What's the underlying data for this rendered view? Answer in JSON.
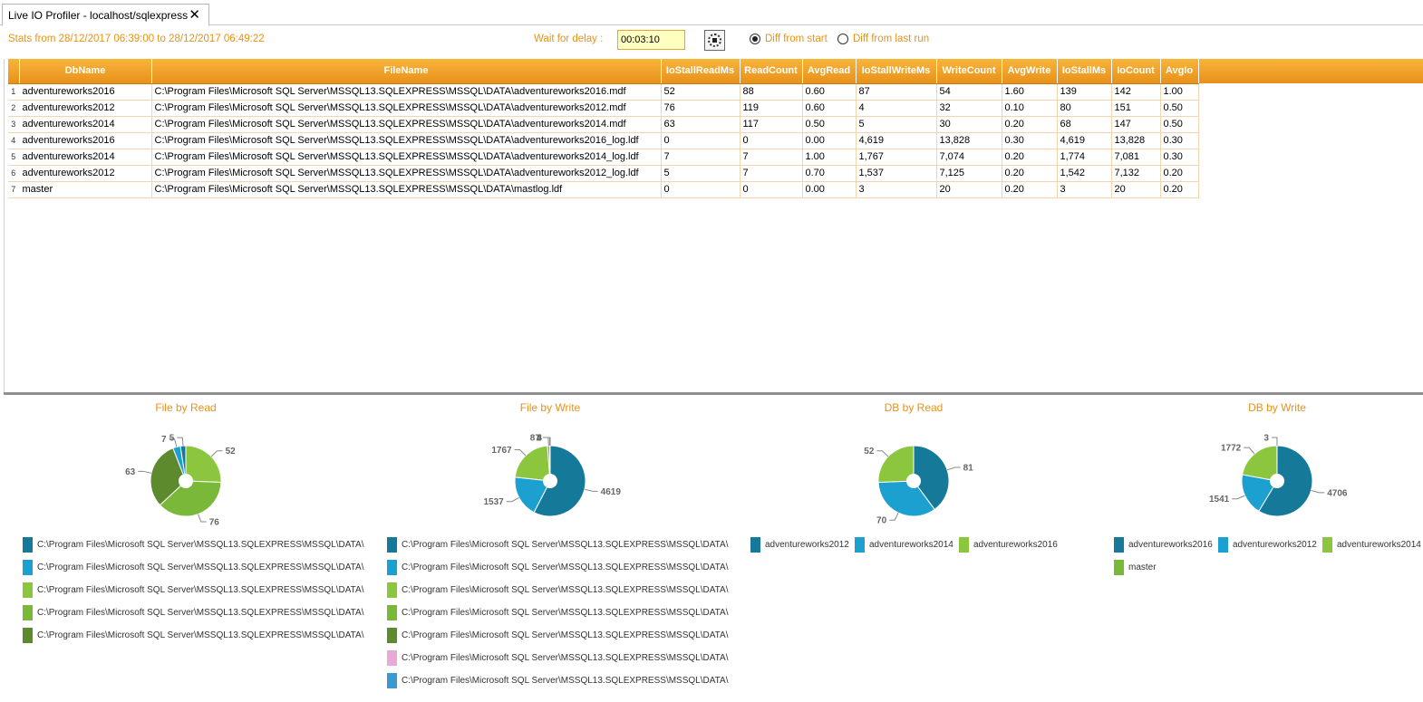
{
  "tab": {
    "title": "Live IO Profiler - localhost/sqlexpress",
    "close_symbol": "✕"
  },
  "toolbar": {
    "stats_text": "Stats from 28/12/2017 06:39:00 to 28/12/2017 06:49:22",
    "wait_label": "Wait for delay :",
    "delay_value": "00:03:10",
    "radio_start": "Diff from start",
    "radio_last": "Diff from last run",
    "selected": "start",
    "stop_icon": "stop-icon"
  },
  "grid": {
    "columns": [
      "DbName",
      "FileName",
      "IoStallReadMs",
      "ReadCount",
      "AvgRead",
      "IoStallWriteMs",
      "WriteCount",
      "AvgWrite",
      "IoStallMs",
      "IoCount",
      "AvgIo"
    ],
    "rows": [
      [
        "1",
        "adventureworks2016",
        "C:\\Program Files\\Microsoft SQL Server\\MSSQL13.SQLEXPRESS\\MSSQL\\DATA\\adventureworks2016.mdf",
        "52",
        "88",
        "0.60",
        "87",
        "54",
        "1.60",
        "139",
        "142",
        "1.00"
      ],
      [
        "2",
        "adventureworks2012",
        "C:\\Program Files\\Microsoft SQL Server\\MSSQL13.SQLEXPRESS\\MSSQL\\DATA\\adventureworks2012.mdf",
        "76",
        "119",
        "0.60",
        "4",
        "32",
        "0.10",
        "80",
        "151",
        "0.50"
      ],
      [
        "3",
        "adventureworks2014",
        "C:\\Program Files\\Microsoft SQL Server\\MSSQL13.SQLEXPRESS\\MSSQL\\DATA\\adventureworks2014.mdf",
        "63",
        "117",
        "0.50",
        "5",
        "30",
        "0.20",
        "68",
        "147",
        "0.50"
      ],
      [
        "4",
        "adventureworks2016",
        "C:\\Program Files\\Microsoft SQL Server\\MSSQL13.SQLEXPRESS\\MSSQL\\DATA\\adventureworks2016_log.ldf",
        "0",
        "0",
        "0.00",
        "4,619",
        "13,828",
        "0.30",
        "4,619",
        "13,828",
        "0.30"
      ],
      [
        "5",
        "adventureworks2014",
        "C:\\Program Files\\Microsoft SQL Server\\MSSQL13.SQLEXPRESS\\MSSQL\\DATA\\adventureworks2014_log.ldf",
        "7",
        "7",
        "1.00",
        "1,767",
        "7,074",
        "0.20",
        "1,774",
        "7,081",
        "0.30"
      ],
      [
        "6",
        "adventureworks2012",
        "C:\\Program Files\\Microsoft SQL Server\\MSSQL13.SQLEXPRESS\\MSSQL\\DATA\\adventureworks2012_log.ldf",
        "5",
        "7",
        "0.70",
        "1,537",
        "7,125",
        "0.20",
        "1,542",
        "7,132",
        "0.20"
      ],
      [
        "7",
        "master",
        "C:\\Program Files\\Microsoft SQL Server\\MSSQL13.SQLEXPRESS\\MSSQL\\DATA\\mastlog.ldf",
        "0",
        "0",
        "0.00",
        "3",
        "20",
        "0.20",
        "3",
        "20",
        "0.20"
      ]
    ]
  },
  "colors": {
    "accent": "#e8921a",
    "header": "#f0a020",
    "slices": [
      "#157a99",
      "#1ba0d0",
      "#8cc63f",
      "#7ab83a",
      "#5e8a2e",
      "#e8a8d8",
      "#3a9ad0"
    ]
  },
  "chart_data": [
    {
      "type": "pie",
      "title": "File by Read",
      "values": [
        52,
        76,
        63,
        7,
        5
      ],
      "colors": [
        "#8cc63f",
        "#7ab83a",
        "#5e8a2e",
        "#1ba0d0",
        "#157a99"
      ],
      "labels": [
        "52",
        "76",
        "63",
        "7",
        "5"
      ],
      "legend": [
        "C:\\Program Files\\Microsoft SQL Server\\MSSQL13.SQLEXPRESS\\MSSQL\\DATA\\",
        "C:\\Program Files\\Microsoft SQL Server\\MSSQL13.SQLEXPRESS\\MSSQL\\DATA\\",
        "C:\\Program Files\\Microsoft SQL Server\\MSSQL13.SQLEXPRESS\\MSSQL\\DATA\\",
        "C:\\Program Files\\Microsoft SQL Server\\MSSQL13.SQLEXPRESS\\MSSQL\\DATA\\",
        "C:\\Program Files\\Microsoft SQL Server\\MSSQL13.SQLEXPRESS\\MSSQL\\DATA\\"
      ],
      "legend_colors": [
        "#157a99",
        "#1ba0d0",
        "#8cc63f",
        "#7ab83a",
        "#5e8a2e"
      ],
      "legend_layout": "column"
    },
    {
      "type": "pie",
      "title": "File by Write",
      "values": [
        4619,
        1537,
        1767,
        87,
        5,
        4,
        3
      ],
      "colors": [
        "#157a99",
        "#1ba0d0",
        "#8cc63f",
        "#7ab83a",
        "#5e8a2e",
        "#e8a8d8",
        "#3a9ad0"
      ],
      "labels": [
        "4619",
        "1537",
        "1767",
        "87",
        "5",
        "4",
        "3"
      ],
      "legend": [
        "C:\\Program Files\\Microsoft SQL Server\\MSSQL13.SQLEXPRESS\\MSSQL\\DATA\\",
        "C:\\Program Files\\Microsoft SQL Server\\MSSQL13.SQLEXPRESS\\MSSQL\\DATA\\",
        "C:\\Program Files\\Microsoft SQL Server\\MSSQL13.SQLEXPRESS\\MSSQL\\DATA\\",
        "C:\\Program Files\\Microsoft SQL Server\\MSSQL13.SQLEXPRESS\\MSSQL\\DATA\\",
        "C:\\Program Files\\Microsoft SQL Server\\MSSQL13.SQLEXPRESS\\MSSQL\\DATA\\",
        "C:\\Program Files\\Microsoft SQL Server\\MSSQL13.SQLEXPRESS\\MSSQL\\DATA\\",
        "C:\\Program Files\\Microsoft SQL Server\\MSSQL13.SQLEXPRESS\\MSSQL\\DATA\\"
      ],
      "legend_colors": [
        "#157a99",
        "#1ba0d0",
        "#8cc63f",
        "#7ab83a",
        "#5e8a2e",
        "#e8a8d8",
        "#3a9ad0"
      ],
      "legend_layout": "column"
    },
    {
      "type": "pie",
      "title": "DB by Read",
      "values": [
        81,
        70,
        52
      ],
      "colors": [
        "#157a99",
        "#1ba0d0",
        "#8cc63f"
      ],
      "labels": [
        "81",
        "70",
        "52"
      ],
      "legend": [
        "adventureworks2012",
        "adventureworks2014",
        "adventureworks2016"
      ],
      "legend_colors": [
        "#157a99",
        "#1ba0d0",
        "#8cc63f"
      ],
      "legend_layout": "row"
    },
    {
      "type": "pie",
      "title": "DB by Write",
      "values": [
        4706,
        1541,
        1772,
        3
      ],
      "colors": [
        "#157a99",
        "#1ba0d0",
        "#8cc63f",
        "#7ab83a"
      ],
      "labels": [
        "4706",
        "1541",
        "1772",
        "3"
      ],
      "legend": [
        "adventureworks2016",
        "adventureworks2012",
        "adventureworks2014",
        "master"
      ],
      "legend_colors": [
        "#157a99",
        "#1ba0d0",
        "#8cc63f",
        "#7ab83a"
      ],
      "legend_layout": "row"
    }
  ]
}
